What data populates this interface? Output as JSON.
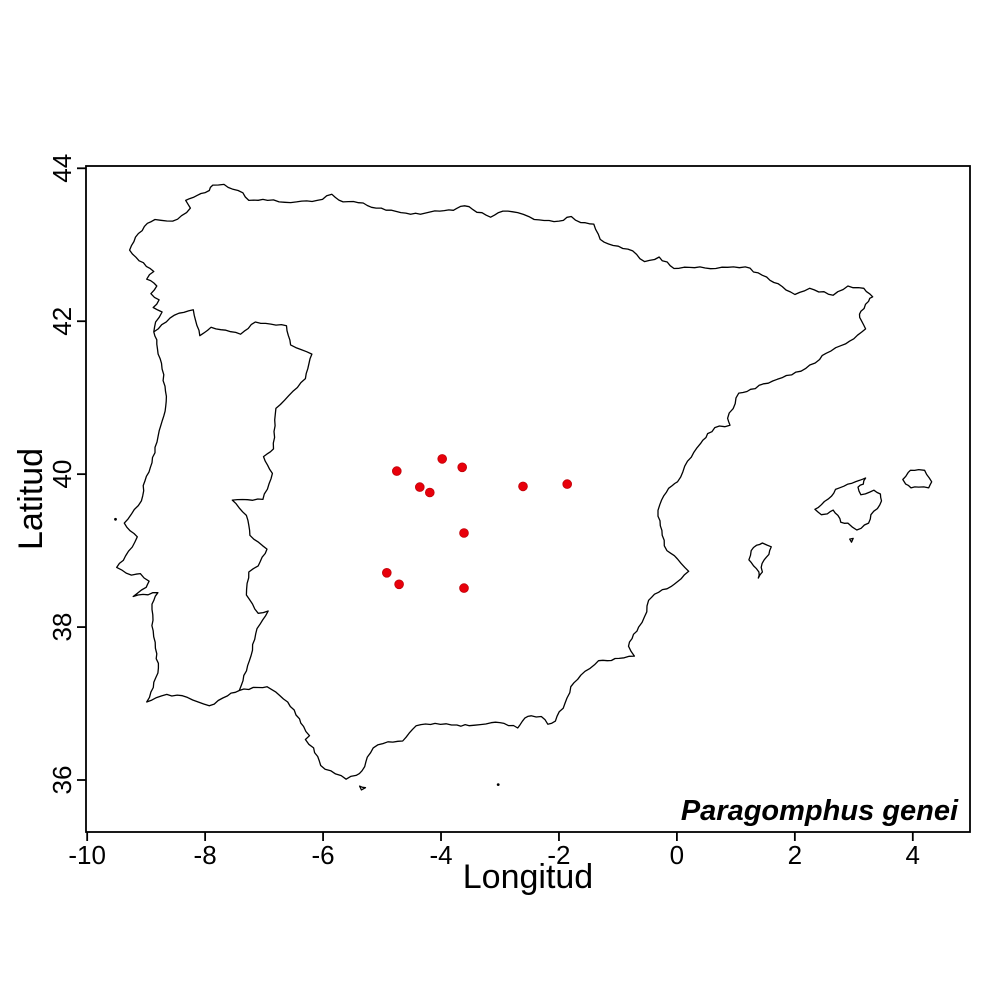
{
  "figure": {
    "annotation": "Paragomphus genei",
    "background": "#ffffff"
  },
  "chart_data": {
    "type": "scatter",
    "xlabel": "Longitud",
    "ylabel": "Latitud",
    "xlim": [
      -10.02,
      4.97
    ],
    "ylim": [
      35.32,
      44.03
    ],
    "x_ticks": [
      -10,
      -8,
      -6,
      -4,
      -2,
      0,
      2,
      4
    ],
    "y_ticks": [
      36,
      38,
      40,
      42,
      44
    ],
    "grid": false,
    "annotation": "Paragomphus genei",
    "annotation_position": "bottom-right",
    "marker": {
      "shape": "filled-circle",
      "color": "#e8000b",
      "radius_px": 4.4
    },
    "points": [
      [
        -3.98,
        40.2
      ],
      [
        -3.64,
        40.09
      ],
      [
        -4.75,
        40.04
      ],
      [
        -4.36,
        39.83
      ],
      [
        -4.19,
        39.76
      ],
      [
        -2.61,
        39.84
      ],
      [
        -1.86,
        39.87
      ],
      [
        -3.61,
        39.23
      ],
      [
        -4.92,
        38.71
      ],
      [
        -4.71,
        38.56
      ],
      [
        -3.61,
        38.51
      ]
    ]
  },
  "map": {
    "region": "Iberian Peninsula with Balearic Islands",
    "stroke": "#000000",
    "paths": [
      {
        "name": "iberia-coastline",
        "kind": "ring",
        "points": [
          [
            -1.79,
            43.37
          ],
          [
            -2.0,
            43.31
          ],
          [
            -2.42,
            43.33
          ],
          [
            -2.7,
            43.42
          ],
          [
            -2.95,
            43.44
          ],
          [
            -3.16,
            43.36
          ],
          [
            -3.46,
            43.46
          ],
          [
            -3.6,
            43.51
          ],
          [
            -3.79,
            43.45
          ],
          [
            -4.02,
            43.44
          ],
          [
            -4.35,
            43.4
          ],
          [
            -4.68,
            43.42
          ],
          [
            -5.1,
            43.48
          ],
          [
            -5.4,
            43.55
          ],
          [
            -5.66,
            43.56
          ],
          [
            -5.85,
            43.66
          ],
          [
            -6.1,
            43.58
          ],
          [
            -6.45,
            43.56
          ],
          [
            -6.94,
            43.58
          ],
          [
            -7.26,
            43.58
          ],
          [
            -7.36,
            43.68
          ],
          [
            -7.61,
            43.75
          ],
          [
            -7.68,
            43.79
          ],
          [
            -7.87,
            43.78
          ],
          [
            -7.93,
            43.71
          ],
          [
            -8.07,
            43.67
          ],
          [
            -8.2,
            43.62
          ],
          [
            -8.33,
            43.58
          ],
          [
            -8.25,
            43.48
          ],
          [
            -8.4,
            43.38
          ],
          [
            -8.55,
            43.31
          ],
          [
            -8.85,
            43.33
          ],
          [
            -9.03,
            43.24
          ],
          [
            -9.18,
            43.1
          ],
          [
            -9.28,
            42.93
          ],
          [
            -9.12,
            42.79
          ],
          [
            -8.87,
            42.65
          ],
          [
            -8.99,
            42.55
          ],
          [
            -8.82,
            42.46
          ],
          [
            -8.92,
            42.36
          ],
          [
            -8.78,
            42.28
          ],
          [
            -8.88,
            42.18
          ],
          [
            -8.73,
            42.12
          ],
          [
            -8.84,
            41.99
          ],
          [
            -8.87,
            41.86
          ],
          [
            -8.82,
            41.7
          ],
          [
            -8.74,
            41.45
          ],
          [
            -8.68,
            41.15
          ],
          [
            -8.66,
            40.95
          ],
          [
            -8.75,
            40.64
          ],
          [
            -8.85,
            40.35
          ],
          [
            -8.9,
            40.15
          ],
          [
            -9.05,
            39.85
          ],
          [
            -9.08,
            39.65
          ],
          [
            -9.37,
            39.36
          ],
          [
            -9.15,
            39.18
          ],
          [
            -9.35,
            38.93
          ],
          [
            -9.5,
            38.78
          ],
          [
            -9.25,
            38.68
          ],
          [
            -9.1,
            38.7
          ],
          [
            -8.95,
            38.6
          ],
          [
            -9.0,
            38.52
          ],
          [
            -9.22,
            38.4
          ],
          [
            -8.8,
            38.45
          ],
          [
            -8.9,
            38.3
          ],
          [
            -8.88,
            37.95
          ],
          [
            -8.82,
            37.65
          ],
          [
            -8.8,
            37.4
          ],
          [
            -8.92,
            37.15
          ],
          [
            -8.99,
            37.02
          ],
          [
            -8.65,
            37.12
          ],
          [
            -8.3,
            37.08
          ],
          [
            -7.93,
            36.97
          ],
          [
            -7.62,
            37.1
          ],
          [
            -7.42,
            37.17
          ],
          [
            -7.1,
            37.21
          ],
          [
            -6.95,
            37.22
          ],
          [
            -6.6,
            37.02
          ],
          [
            -6.4,
            36.8
          ],
          [
            -6.33,
            36.7
          ],
          [
            -6.23,
            36.58
          ],
          [
            -6.3,
            36.53
          ],
          [
            -6.16,
            36.42
          ],
          [
            -6.04,
            36.19
          ],
          [
            -5.79,
            36.08
          ],
          [
            -5.61,
            36.01
          ],
          [
            -5.44,
            36.06
          ],
          [
            -5.34,
            36.12
          ],
          [
            -5.25,
            36.3
          ],
          [
            -5.15,
            36.42
          ],
          [
            -4.9,
            36.5
          ],
          [
            -4.65,
            36.51
          ],
          [
            -4.42,
            36.71
          ],
          [
            -4.1,
            36.74
          ],
          [
            -3.73,
            36.72
          ],
          [
            -3.52,
            36.71
          ],
          [
            -3.15,
            36.75
          ],
          [
            -2.93,
            36.74
          ],
          [
            -2.7,
            36.68
          ],
          [
            -2.58,
            36.81
          ],
          [
            -2.47,
            36.84
          ],
          [
            -2.3,
            36.83
          ],
          [
            -2.19,
            36.73
          ],
          [
            -2.06,
            36.77
          ],
          [
            -1.9,
            37.0
          ],
          [
            -1.8,
            37.22
          ],
          [
            -1.63,
            37.37
          ],
          [
            -1.33,
            37.56
          ],
          [
            -1.18,
            37.56
          ],
          [
            -0.98,
            37.59
          ],
          [
            -0.72,
            37.62
          ],
          [
            -0.82,
            37.75
          ],
          [
            -0.76,
            37.85
          ],
          [
            -0.65,
            38.0
          ],
          [
            -0.51,
            38.2
          ],
          [
            -0.48,
            38.35
          ],
          [
            -0.38,
            38.43
          ],
          [
            -0.1,
            38.53
          ],
          [
            0.07,
            38.63
          ],
          [
            0.2,
            38.73
          ],
          [
            0.01,
            38.89
          ],
          [
            -0.17,
            39.0
          ],
          [
            -0.25,
            39.2
          ],
          [
            -0.32,
            39.45
          ],
          [
            -0.29,
            39.6
          ],
          [
            -0.22,
            39.72
          ],
          [
            -0.08,
            39.85
          ],
          [
            0.01,
            39.9
          ],
          [
            0.18,
            40.17
          ],
          [
            0.4,
            40.4
          ],
          [
            0.52,
            40.53
          ],
          [
            0.72,
            40.63
          ],
          [
            0.9,
            40.64
          ],
          [
            0.86,
            40.73
          ],
          [
            1.05,
            41.06
          ],
          [
            1.25,
            41.11
          ],
          [
            1.55,
            41.19
          ],
          [
            1.78,
            41.26
          ],
          [
            2.18,
            41.38
          ],
          [
            2.42,
            41.5
          ],
          [
            2.53,
            41.58
          ],
          [
            2.78,
            41.68
          ],
          [
            3.0,
            41.77
          ],
          [
            3.2,
            41.9
          ],
          [
            3.1,
            42.05
          ],
          [
            3.12,
            42.13
          ],
          [
            3.25,
            42.26
          ],
          [
            3.32,
            42.32
          ],
          [
            3.17,
            42.43
          ],
          [
            2.9,
            42.46
          ],
          [
            2.65,
            42.34
          ],
          [
            2.25,
            42.43
          ],
          [
            2.0,
            42.35
          ],
          [
            1.72,
            42.49
          ],
          [
            1.45,
            42.6
          ],
          [
            1.16,
            42.71
          ],
          [
            0.66,
            42.69
          ],
          [
            0.3,
            42.7
          ],
          [
            -0.05,
            42.69
          ],
          [
            -0.3,
            42.84
          ],
          [
            -0.55,
            42.78
          ],
          [
            -0.75,
            42.92
          ],
          [
            -1.08,
            42.99
          ],
          [
            -1.3,
            43.07
          ],
          [
            -1.41,
            43.27
          ],
          [
            -1.63,
            43.29
          ]
        ]
      },
      {
        "name": "portugal-spain-border",
        "kind": "line",
        "points": [
          [
            -8.87,
            41.86
          ],
          [
            -8.52,
            42.08
          ],
          [
            -8.2,
            42.15
          ],
          [
            -8.09,
            41.81
          ],
          [
            -7.9,
            41.92
          ],
          [
            -7.4,
            41.83
          ],
          [
            -7.15,
            41.99
          ],
          [
            -6.62,
            41.94
          ],
          [
            -6.55,
            41.69
          ],
          [
            -6.19,
            41.57
          ],
          [
            -6.3,
            41.25
          ],
          [
            -6.8,
            40.86
          ],
          [
            -6.84,
            40.33
          ],
          [
            -7.01,
            40.23
          ],
          [
            -6.86,
            40.01
          ],
          [
            -7.02,
            39.67
          ],
          [
            -7.54,
            39.66
          ],
          [
            -7.3,
            39.46
          ],
          [
            -7.24,
            39.2
          ],
          [
            -6.95,
            39.02
          ],
          [
            -7.1,
            38.8
          ],
          [
            -7.26,
            38.72
          ],
          [
            -7.3,
            38.42
          ],
          [
            -7.1,
            38.18
          ],
          [
            -6.93,
            38.21
          ],
          [
            -7.12,
            37.98
          ],
          [
            -7.25,
            37.56
          ],
          [
            -7.42,
            37.17
          ]
        ]
      },
      {
        "name": "mallorca",
        "kind": "ring",
        "points": [
          [
            2.34,
            39.54
          ],
          [
            2.45,
            39.6
          ],
          [
            2.62,
            39.71
          ],
          [
            2.69,
            39.8
          ],
          [
            2.9,
            39.87
          ],
          [
            3.1,
            39.92
          ],
          [
            3.2,
            39.95
          ],
          [
            3.16,
            39.87
          ],
          [
            3.07,
            39.83
          ],
          [
            3.12,
            39.73
          ],
          [
            3.34,
            39.79
          ],
          [
            3.45,
            39.74
          ],
          [
            3.47,
            39.65
          ],
          [
            3.4,
            39.55
          ],
          [
            3.29,
            39.47
          ],
          [
            3.25,
            39.36
          ],
          [
            3.05,
            39.27
          ],
          [
            2.9,
            39.36
          ],
          [
            2.78,
            39.37
          ],
          [
            2.73,
            39.46
          ],
          [
            2.65,
            39.53
          ],
          [
            2.55,
            39.48
          ],
          [
            2.45,
            39.47
          ]
        ]
      },
      {
        "name": "menorca",
        "kind": "ring",
        "points": [
          [
            3.83,
            39.93
          ],
          [
            3.92,
            40.02
          ],
          [
            3.96,
            40.05
          ],
          [
            4.1,
            40.06
          ],
          [
            4.2,
            40.05
          ],
          [
            4.32,
            39.9
          ],
          [
            4.27,
            39.82
          ],
          [
            4.1,
            39.83
          ],
          [
            3.97,
            39.82
          ],
          [
            3.88,
            39.87
          ]
        ]
      },
      {
        "name": "ibiza-formentera",
        "kind": "ring",
        "points": [
          [
            1.22,
            38.88
          ],
          [
            1.26,
            39.0
          ],
          [
            1.35,
            39.07
          ],
          [
            1.45,
            39.1
          ],
          [
            1.6,
            39.05
          ],
          [
            1.56,
            38.95
          ],
          [
            1.48,
            38.88
          ],
          [
            1.43,
            38.78
          ],
          [
            1.45,
            38.72
          ],
          [
            1.38,
            38.64
          ],
          [
            1.39,
            38.72
          ],
          [
            1.3,
            38.8
          ]
        ]
      },
      {
        "name": "cabrera",
        "kind": "ring",
        "points": [
          [
            2.93,
            39.15
          ],
          [
            2.99,
            39.16
          ],
          [
            2.96,
            39.11
          ]
        ]
      },
      {
        "name": "ceuta",
        "kind": "ring",
        "points": [
          [
            -5.38,
            35.92
          ],
          [
            -5.28,
            35.9
          ],
          [
            -5.35,
            35.87
          ]
        ]
      }
    ],
    "islet_dots": [
      [
        -3.03,
        35.94
      ],
      [
        -9.52,
        39.41
      ]
    ]
  }
}
